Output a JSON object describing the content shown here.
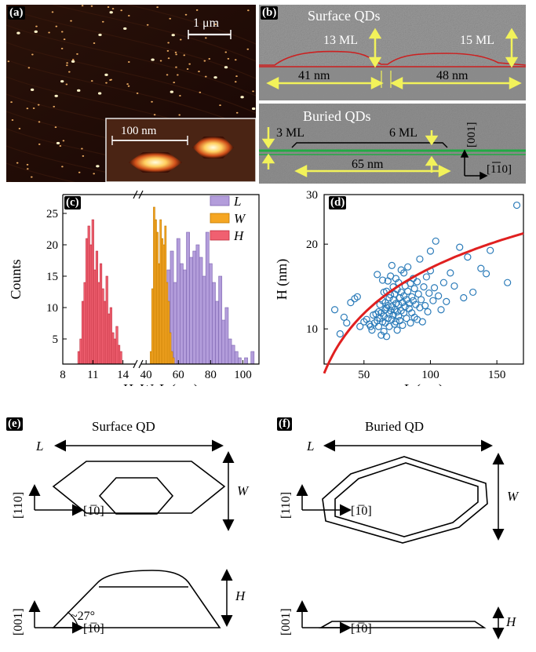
{
  "panels": {
    "a": {
      "tag": "(a)",
      "scalebar": "1 μm",
      "inset_scalebar": "100 nm",
      "colors": {
        "background": "#1f0b06",
        "dot": "#f0b870",
        "hot": "#fff6c0"
      }
    },
    "b": {
      "tag": "(b)",
      "surface_title": "Surface QDs",
      "ml_left": "13 ML",
      "ml_right": "15 ML",
      "len_left": "41 nm",
      "len_right": "48 nm",
      "buried_title": "Buried QDs",
      "ml_3": "3 ML",
      "ml_6": "6 ML",
      "len_buried": "65 nm",
      "axis_001": "[001]",
      "axis_110": "[110]",
      "colors": {
        "tem": "#8e8e8e",
        "profile": "#cc2020",
        "buried_line": "#22aa44",
        "arrow": "#f2f25a"
      }
    },
    "c": {
      "tag": "(c)",
      "ylabel": "Counts",
      "xlabel": "H, W, L (nm)"
    },
    "d": {
      "tag": "(d)",
      "ylabel": "H (nm)",
      "xlabel": "L (nm)"
    },
    "e": {
      "tag": "(e)",
      "title": "Surface QD",
      "L": "L",
      "W": "W",
      "H": "H",
      "dir_top_v": "[110]",
      "dir_top_h": "[1̅0]",
      "dir_bot_v": "[001]",
      "dir_bot_h": "[1̅0]",
      "angle": "~27°"
    },
    "f": {
      "tag": "(f)",
      "title": "Buried QD",
      "L": "L",
      "W": "W",
      "H": "H",
      "dir_top_v": "[110]",
      "dir_top_h": "[1̅0]",
      "dir_bot_v": "[001]",
      "dir_bot_h": "[1̅0]"
    }
  },
  "chart_data": [
    {
      "type": "bar",
      "panel": "c",
      "ylabel": "Counts",
      "xlabel": "H, W, L (nm)",
      "ylim": [
        1,
        28
      ],
      "yticks": [
        5,
        10,
        15,
        20,
        25
      ],
      "xticks_left": [
        "8",
        "11",
        "14"
      ],
      "xticks_right": [
        "40",
        "60",
        "80",
        "100"
      ],
      "legend": [
        "L",
        "W",
        "H"
      ],
      "legend_position": "top-right",
      "colors": {
        "L": "#b39ddb",
        "W": "#f5a623",
        "H": "#f06070"
      },
      "series": [
        {
          "name": "H",
          "bin_centers": [
            9.6,
            9.8,
            10.0,
            10.2,
            10.4,
            10.6,
            10.8,
            11.0,
            11.2,
            11.4,
            11.6,
            11.8,
            12.0,
            12.2,
            12.4,
            12.6,
            12.8,
            13.0,
            13.2,
            13.4,
            13.6,
            13.8
          ],
          "values": [
            3,
            5,
            11,
            14,
            21,
            23,
            20,
            24,
            16,
            19,
            14,
            17,
            13,
            11,
            15,
            9,
            10,
            6,
            5,
            7,
            4,
            3
          ]
        },
        {
          "name": "W",
          "bin_centers": [
            43,
            44,
            45,
            46,
            47,
            48,
            49,
            50,
            51,
            52,
            53,
            54,
            55,
            56,
            57
          ],
          "values": [
            3,
            13,
            26,
            24,
            22,
            17,
            24,
            21,
            20,
            23,
            14,
            11,
            6,
            3,
            2
          ]
        },
        {
          "name": "L",
          "bin_centers": [
            50,
            52,
            54,
            56,
            58,
            60,
            62,
            64,
            66,
            68,
            70,
            72,
            74,
            76,
            78,
            80,
            82,
            84,
            86,
            88,
            90,
            92,
            94,
            96,
            98,
            100,
            102,
            104,
            106
          ],
          "values": [
            9,
            12,
            16,
            19,
            14,
            21,
            17,
            16,
            22,
            18,
            19,
            20,
            18,
            15,
            22,
            17,
            14,
            11,
            15,
            8,
            10,
            5,
            4,
            3,
            2,
            1,
            2,
            1,
            3
          ]
        }
      ]
    },
    {
      "type": "scatter",
      "panel": "d",
      "ylabel": "H (nm)",
      "xlabel": "L (nm)",
      "xlim": [
        20,
        170
      ],
      "ylim": [
        7.5,
        30
      ],
      "yscale": "log",
      "xticks": [
        50,
        100,
        150
      ],
      "yticks": [
        10,
        20,
        30
      ],
      "colors": {
        "points": "#2b7bb9",
        "fit": "#e02020"
      },
      "points": [
        [
          28,
          11.7
        ],
        [
          32,
          9.6
        ],
        [
          35,
          11.0
        ],
        [
          37,
          10.5
        ],
        [
          40,
          12.4
        ],
        [
          43,
          12.8
        ],
        [
          45,
          13.0
        ],
        [
          47,
          10.2
        ],
        [
          50,
          10.6
        ],
        [
          52,
          10.8
        ],
        [
          54,
          10.4
        ],
        [
          55,
          10.2
        ],
        [
          56,
          9.9
        ],
        [
          57,
          11.2
        ],
        [
          58,
          10.5
        ],
        [
          59,
          11.3
        ],
        [
          60,
          10.7
        ],
        [
          60,
          15.6
        ],
        [
          61,
          10.2
        ],
        [
          61,
          11.5
        ],
        [
          62,
          10.9
        ],
        [
          62,
          12.2
        ],
        [
          63,
          9.5
        ],
        [
          63,
          11.4
        ],
        [
          64,
          10.6
        ],
        [
          64,
          12.6
        ],
        [
          64,
          14.9
        ],
        [
          65,
          11.1
        ],
        [
          65,
          13.5
        ],
        [
          65,
          9.8
        ],
        [
          66,
          11.7
        ],
        [
          66,
          12.4
        ],
        [
          66,
          10.5
        ],
        [
          67,
          11.9
        ],
        [
          67,
          13.6
        ],
        [
          67,
          9.4
        ],
        [
          68,
          12.1
        ],
        [
          68,
          10.9
        ],
        [
          68,
          14.8
        ],
        [
          69,
          11.3
        ],
        [
          69,
          12.9
        ],
        [
          69,
          10.2
        ],
        [
          70,
          11.6
        ],
        [
          70,
          13.2
        ],
        [
          70,
          15.4
        ],
        [
          71,
          12.0
        ],
        [
          71,
          10.8
        ],
        [
          71,
          16.8
        ],
        [
          72,
          12.7
        ],
        [
          72,
          11.2
        ],
        [
          72,
          14.1
        ],
        [
          73,
          10.4
        ],
        [
          73,
          13.3
        ],
        [
          73,
          11.7
        ],
        [
          74,
          12.3
        ],
        [
          74,
          15.1
        ],
        [
          74,
          10.6
        ],
        [
          75,
          11.5
        ],
        [
          75,
          13.8
        ],
        [
          75,
          9.9
        ],
        [
          76,
          12.2
        ],
        [
          76,
          14.6
        ],
        [
          76,
          11.1
        ],
        [
          77,
          12.9
        ],
        [
          77,
          10.7
        ],
        [
          78,
          13.5
        ],
        [
          78,
          11.6
        ],
        [
          78,
          16.2
        ],
        [
          79,
          12.4
        ],
        [
          79,
          10.3
        ],
        [
          80,
          13.1
        ],
        [
          80,
          15.8
        ],
        [
          80,
          11.4
        ],
        [
          81,
          12.0
        ],
        [
          81,
          14.2
        ],
        [
          82,
          10.9
        ],
        [
          82,
          12.7
        ],
        [
          83,
          13.6
        ],
        [
          83,
          16.6
        ],
        [
          84,
          11.8
        ],
        [
          84,
          12.3
        ],
        [
          85,
          14.5
        ],
        [
          85,
          10.5
        ],
        [
          86,
          13.0
        ],
        [
          86,
          11.4
        ],
        [
          87,
          15.1
        ],
        [
          87,
          12.6
        ],
        [
          88,
          11.0
        ],
        [
          88,
          13.9
        ],
        [
          89,
          12.2
        ],
        [
          90,
          14.7
        ],
        [
          90,
          10.8
        ],
        [
          91,
          13.3
        ],
        [
          92,
          11.9
        ],
        [
          92,
          17.7
        ],
        [
          93,
          12.7
        ],
        [
          94,
          10.6
        ],
        [
          95,
          14.1
        ],
        [
          96,
          12.1
        ],
        [
          97,
          15.3
        ],
        [
          98,
          11.5
        ],
        [
          99,
          13.4
        ],
        [
          100,
          16.1
        ],
        [
          100,
          18.9
        ],
        [
          102,
          12.6
        ],
        [
          103,
          14.0
        ],
        [
          104,
          20.5
        ],
        [
          106,
          13.1
        ],
        [
          108,
          11.7
        ],
        [
          110,
          14.6
        ],
        [
          112,
          12.5
        ],
        [
          115,
          15.8
        ],
        [
          118,
          14.2
        ],
        [
          122,
          19.5
        ],
        [
          125,
          12.9
        ],
        [
          128,
          18.0
        ],
        [
          132,
          13.5
        ],
        [
          138,
          16.4
        ],
        [
          142,
          15.7
        ],
        [
          145,
          19.0
        ],
        [
          158,
          14.6
        ],
        [
          165,
          27.5
        ]
      ],
      "fit": {
        "type": "power",
        "a": 1.4,
        "b": 0.535
      }
    }
  ]
}
